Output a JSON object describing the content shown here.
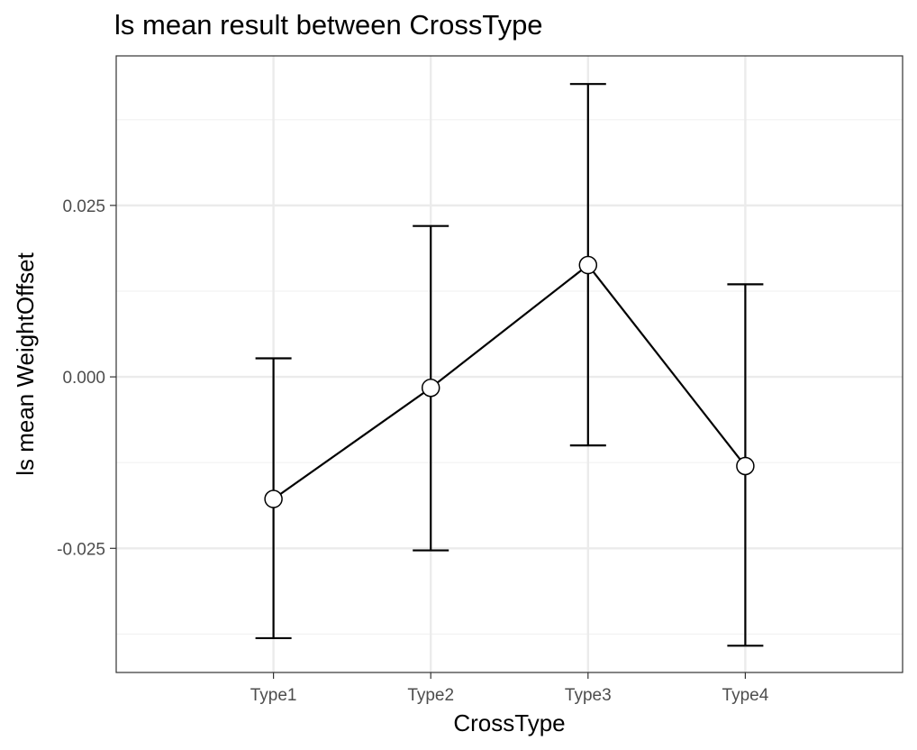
{
  "chart_data": {
    "type": "line",
    "title": "ls mean result between CrossType",
    "xlabel": "CrossType",
    "ylabel": "ls mean WeightOffset",
    "categories": [
      "Type1",
      "Type2",
      "Type3",
      "Type4"
    ],
    "series": [
      {
        "values": [
          -0.0178,
          -0.0016,
          0.0163,
          -0.013
        ],
        "lower": [
          -0.0381,
          -0.0253,
          -0.01,
          -0.0392
        ],
        "upper": [
          0.0027,
          0.022,
          0.0427,
          0.0135
        ]
      }
    ],
    "yticks": [
      -0.025,
      0.0,
      0.025
    ],
    "ytick_labels": [
      "-0.025",
      "0.000",
      "0.025"
    ],
    "ylim": [
      -0.0431,
      0.0468
    ],
    "grid": true,
    "theme": "bw",
    "colors": {
      "line": "#000000",
      "point_fill": "#ffffff",
      "point_stroke": "#000000",
      "grid_major": "#ebebeb",
      "grid_minor": "#f2f2f2",
      "panel_border": "#333333",
      "tick_text": "#4d4d4d"
    }
  }
}
